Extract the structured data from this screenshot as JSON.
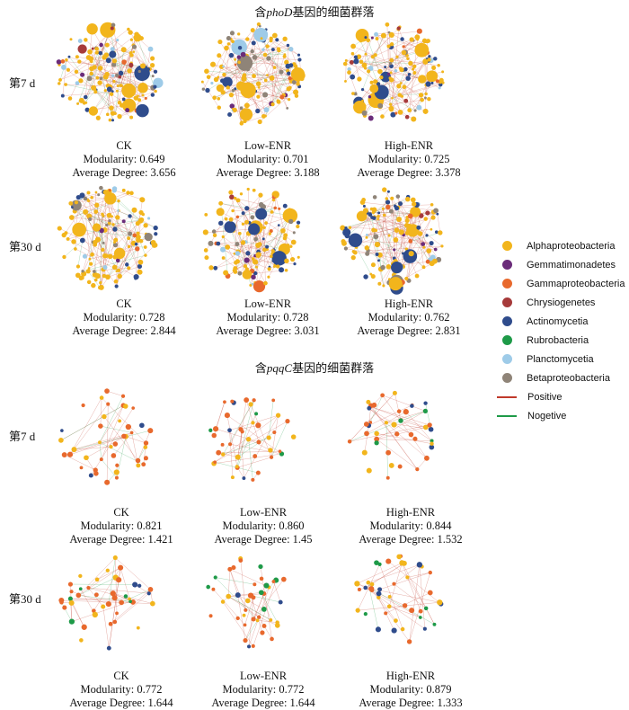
{
  "section1": {
    "title_pre": "含",
    "title_gene": "phoD",
    "title_post": "基因的细菌群落"
  },
  "section2": {
    "title_pre": "含",
    "title_gene": "pqqC",
    "title_post": "基因的细菌群落"
  },
  "row_labels": {
    "d7": "第7 d",
    "d30": "第30 d"
  },
  "stat_labels": {
    "modularity": "Modularity:",
    "degree": "Average Degree:"
  },
  "phoD": {
    "d7": [
      {
        "treatment": "CK",
        "modularity": "0.649",
        "degree": "3.656"
      },
      {
        "treatment": "Low-ENR",
        "modularity": "0.701",
        "degree": "3.188"
      },
      {
        "treatment": "High-ENR",
        "modularity": "0.725",
        "degree": "3.378"
      }
    ],
    "d30": [
      {
        "treatment": "CK",
        "modularity": "0.728",
        "degree": "2.844"
      },
      {
        "treatment": "Low-ENR",
        "modularity": "0.728",
        "degree": "3.031"
      },
      {
        "treatment": "High-ENR",
        "modularity": "0.762",
        "degree": "2.831"
      }
    ]
  },
  "pqqC": {
    "d7": [
      {
        "treatment": "CK",
        "modularity": "0.821",
        "degree": "1.421"
      },
      {
        "treatment": "Low-ENR",
        "modularity": "0.860",
        "degree": "1.45"
      },
      {
        "treatment": "High-ENR",
        "modularity": "0.844",
        "degree": "1.532"
      }
    ],
    "d30": [
      {
        "treatment": "CK",
        "modularity": "0.772",
        "degree": "1.644"
      },
      {
        "treatment": "Low-ENR",
        "modularity": "0.772",
        "degree": "1.644"
      },
      {
        "treatment": "High-ENR",
        "modularity": "0.879",
        "degree": "1.333"
      }
    ]
  },
  "legend": [
    {
      "label": "Alphaproteobacteria",
      "type": "dot",
      "color": "#f2b51c"
    },
    {
      "label": "Gemmatimonadetes",
      "type": "dot",
      "color": "#6b2c7a"
    },
    {
      "label": "Gammaproteobacteria",
      "type": "dot",
      "color": "#e8692d"
    },
    {
      "label": "Chrysiogenetes",
      "type": "dot",
      "color": "#a63a3a"
    },
    {
      "label": "Actinomycetia",
      "type": "dot",
      "color": "#2f4c8c"
    },
    {
      "label": "Rubrobacteria",
      "type": "dot",
      "color": "#1e9a48"
    },
    {
      "label": "Planctomycetia",
      "type": "dot",
      "color": "#9ecbe8"
    },
    {
      "label": "Betaproteobacteria",
      "type": "dot",
      "color": "#8f8478"
    },
    {
      "label": "Positive",
      "type": "line",
      "color": "#c0392b"
    },
    {
      "label": "Nogetive",
      "type": "line",
      "color": "#1e9a48"
    }
  ]
}
